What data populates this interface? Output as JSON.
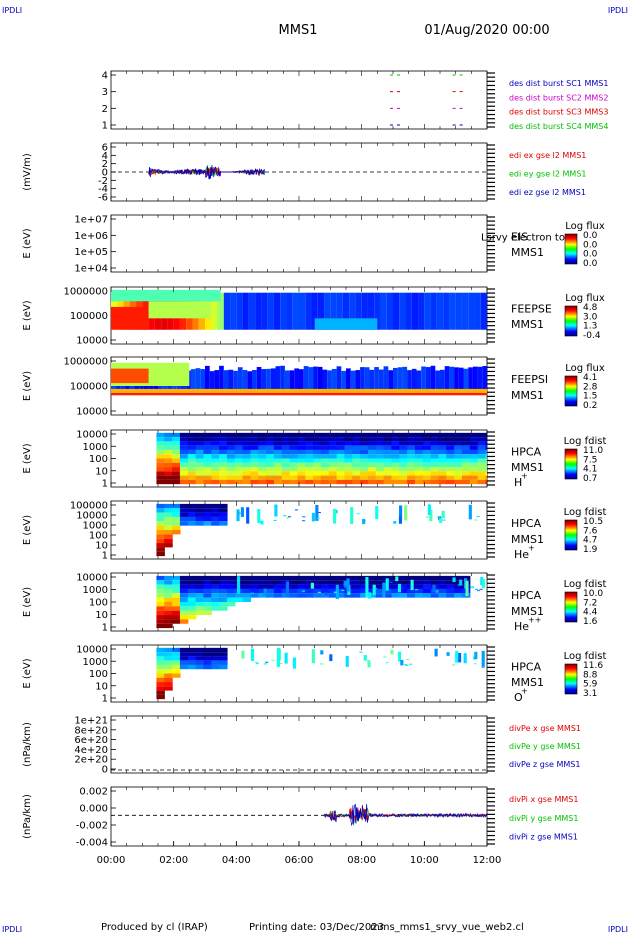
{
  "corner_mark": "IPDLI",
  "header": {
    "spacecraft": "MMS1",
    "datetime": "01/Aug/2020 00:00"
  },
  "footer": {
    "produced_by": "Produced by cl (IRAP)",
    "printing_date": "Printing date: 03/Dec/2023",
    "script_name": "mms_mms1_srvy_vue_web2.cl"
  },
  "colors": {
    "red": "#e00000",
    "green": "#00c000",
    "blue": "#0000c0",
    "magenta": "#cc00cc"
  },
  "chart_data": [
    {
      "id": "burst",
      "type": "line",
      "yticks": [
        "4",
        "3",
        "2",
        "1"
      ],
      "labels": [
        {
          "text": "des dist burst SC1 MMS1",
          "color": "#0000c0"
        },
        {
          "text": "des dist burst SC2 MMS2",
          "color": "#cc00cc"
        },
        {
          "text": "des dist burst SC3 MMS3",
          "color": "#e00000"
        },
        {
          "text": "des dist burst SC4 MMS4",
          "color": "#00c000"
        }
      ],
      "bursts": [
        {
          "sc": 4,
          "times": [
            9.0,
            11.0
          ]
        },
        {
          "sc": 3,
          "times": [
            9.0,
            11.0
          ]
        },
        {
          "sc": 2,
          "times": [
            9.0,
            11.0
          ]
        },
        {
          "sc": 1,
          "times": [
            9.0,
            11.0
          ]
        }
      ]
    },
    {
      "id": "efield",
      "type": "line",
      "ylabel": "(mV/m)",
      "yticks": [
        "6",
        "4",
        "2",
        "0",
        "-2",
        "-4",
        "-6"
      ],
      "ylim": [
        -6,
        6
      ],
      "zero_line": true,
      "data_span_hours": [
        1.2,
        4.9
      ],
      "labels": [
        {
          "text": "edi ex gse l2 MMS1",
          "color": "#e00000"
        },
        {
          "text": "edi ey gse l2 MMS1",
          "color": "#00c000"
        },
        {
          "text": "edi ez gse l2 MMS1",
          "color": "#0000c0"
        }
      ]
    },
    {
      "id": "eis",
      "type": "heatmap",
      "ylabel": "E (eV)",
      "yticks": [
        "1e+07",
        "1e+06",
        "1e+05",
        "1e+04"
      ],
      "instrument": "EIS",
      "instrument2": "MMS1",
      "overlay_text": "Lsrvy electron to",
      "colorbar": {
        "title": "Log flux",
        "ticks": [
          "0.0",
          "0.0",
          "0.0",
          "0.0"
        ]
      }
    },
    {
      "id": "feepse",
      "type": "heatmap",
      "ylabel": "E (eV)",
      "yticks": [
        "1000000",
        "100000",
        "10000"
      ],
      "instrument": "FEEPSE",
      "instrument2": "MMS1",
      "colorbar": {
        "title": "Log flux",
        "ticks": [
          "4.8",
          "3.0",
          "1.3",
          "-0.4"
        ]
      }
    },
    {
      "id": "feepsi",
      "type": "heatmap",
      "ylabel": "E (eV)",
      "yticks": [
        "1000000",
        "100000",
        "10000"
      ],
      "instrument": "FEEPSI",
      "instrument2": "MMS1",
      "colorbar": {
        "title": "Log flux",
        "ticks": [
          "4.1",
          "2.8",
          "1.5",
          "0.2"
        ]
      }
    },
    {
      "id": "hpca_h",
      "type": "heatmap",
      "ylabel": "E (eV)",
      "yticks": [
        "10000",
        "1000",
        "100",
        "10",
        "1"
      ],
      "instrument": "HPCA",
      "instrument2": "MMS1",
      "species": "H",
      "charge": "+",
      "colorbar": {
        "title": "Log fdist",
        "ticks": [
          "11.0",
          "7.5",
          "4.1",
          "0.7"
        ]
      }
    },
    {
      "id": "hpca_he1",
      "type": "heatmap",
      "ylabel": "E (eV)",
      "yticks": [
        "100000",
        "10000",
        "1000",
        "100",
        "10",
        "1"
      ],
      "instrument": "HPCA",
      "instrument2": "MMS1",
      "species": "He",
      "charge": "+",
      "colorbar": {
        "title": "Log fdist",
        "ticks": [
          "10.5",
          "7.6",
          "4.7",
          "1.9"
        ]
      }
    },
    {
      "id": "hpca_he2",
      "type": "heatmap",
      "ylabel": "E (eV)",
      "yticks": [
        "10000",
        "1000",
        "100",
        "10",
        "1"
      ],
      "instrument": "HPCA",
      "instrument2": "MMS1",
      "species": "He",
      "charge": "++",
      "colorbar": {
        "title": "Log fdist",
        "ticks": [
          "10.0",
          "7.2",
          "4.4",
          "1.6"
        ]
      }
    },
    {
      "id": "hpca_o",
      "type": "heatmap",
      "ylabel": "E (eV)",
      "yticks": [
        "10000",
        "1000",
        "100",
        "10",
        "1"
      ],
      "instrument": "HPCA",
      "instrument2": "MMS1",
      "species": "O",
      "charge": "+",
      "colorbar": {
        "title": "Log fdist",
        "ticks": [
          "11.6",
          "8.8",
          "5.9",
          "3.1"
        ]
      }
    },
    {
      "id": "divpe",
      "type": "line",
      "ylabel": "(nPa/km)",
      "yticks": [
        "1e+21",
        "8e+20",
        "6e+20",
        "4e+20",
        "2e+20",
        "0"
      ],
      "zero_line": true,
      "labels": [
        {
          "text": "divPe x gse MMS1",
          "color": "#e00000"
        },
        {
          "text": "divPe y gse MMS1",
          "color": "#00c000"
        },
        {
          "text": "divPe z gse MMS1",
          "color": "#0000c0"
        }
      ]
    },
    {
      "id": "divpi",
      "type": "line",
      "ylabel": "(nPa/km)",
      "yticks": [
        "0.002",
        "0.000",
        "-0.002",
        "-0.004"
      ],
      "ylim": [
        -0.0045,
        0.003
      ],
      "zero_line": true,
      "data_span_hours": [
        6.8,
        12.0
      ],
      "labels": [
        {
          "text": "divPi x gse MMS1",
          "color": "#e00000"
        },
        {
          "text": "divPi y gse MMS1",
          "color": "#00c000"
        },
        {
          "text": "divPi z gse MMS1",
          "color": "#0000c0"
        }
      ]
    }
  ],
  "xaxis": {
    "ticks": [
      "00:00",
      "02:00",
      "04:00",
      "06:00",
      "08:00",
      "10:00",
      "12:00"
    ],
    "range_hours": [
      0,
      12
    ]
  }
}
